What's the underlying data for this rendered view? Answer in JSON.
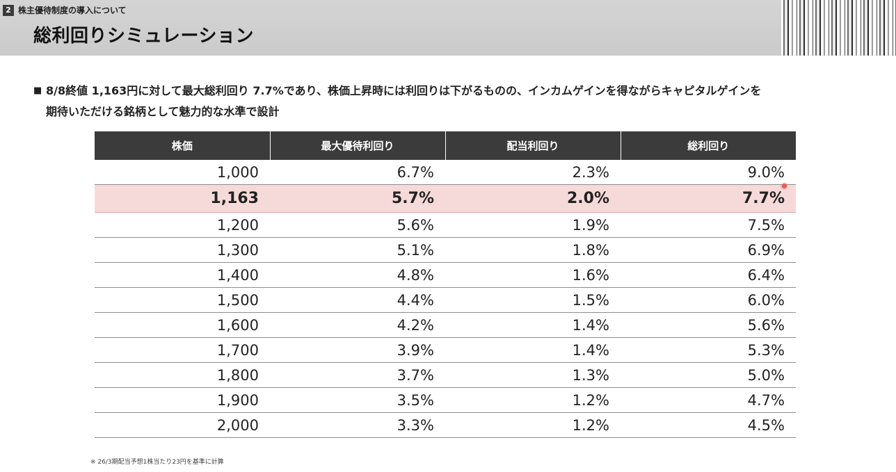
{
  "header": {
    "section_no": "2",
    "section_title": "株主優待制度の導入について",
    "page_title": "総利回りシミュレーション"
  },
  "lead": {
    "bullet": "■",
    "line1": "8/8終値 1,163円に対して最大総利回り 7.7%であり、株価上昇時には利回りは下がるものの、インカムゲインを得ながらキャピタルゲインを",
    "line2": "期待いただける銘柄として魅力的な水準で設計"
  },
  "table": {
    "headers": [
      "株価",
      "最大優待利回り",
      "配当利回り",
      "総利回り"
    ],
    "highlight_row": 1,
    "rows": [
      [
        "1,000",
        "6.7%",
        "2.3%",
        "9.0%"
      ],
      [
        "1,163",
        "5.7%",
        "2.0%",
        "7.7%"
      ],
      [
        "1,200",
        "5.6%",
        "1.9%",
        "7.5%"
      ],
      [
        "1,300",
        "5.1%",
        "1.8%",
        "6.9%"
      ],
      [
        "1,400",
        "4.8%",
        "1.6%",
        "6.4%"
      ],
      [
        "1,500",
        "4.4%",
        "1.5%",
        "6.0%"
      ],
      [
        "1,600",
        "4.2%",
        "1.4%",
        "5.6%"
      ],
      [
        "1,700",
        "3.9%",
        "1.4%",
        "5.3%"
      ],
      [
        "1,800",
        "3.7%",
        "1.3%",
        "5.0%"
      ],
      [
        "1,900",
        "3.5%",
        "1.2%",
        "4.7%"
      ],
      [
        "2,000",
        "3.3%",
        "1.2%",
        "4.5%"
      ]
    ]
  },
  "footnote": "※ 26/3期配当予想1株当たり23円を基準に計算",
  "colors": {
    "header_band": "#cbcbcb",
    "table_header": "#3b3b3b",
    "highlight_row": "#f6dada",
    "cursor_dot": "#e55a5a"
  }
}
